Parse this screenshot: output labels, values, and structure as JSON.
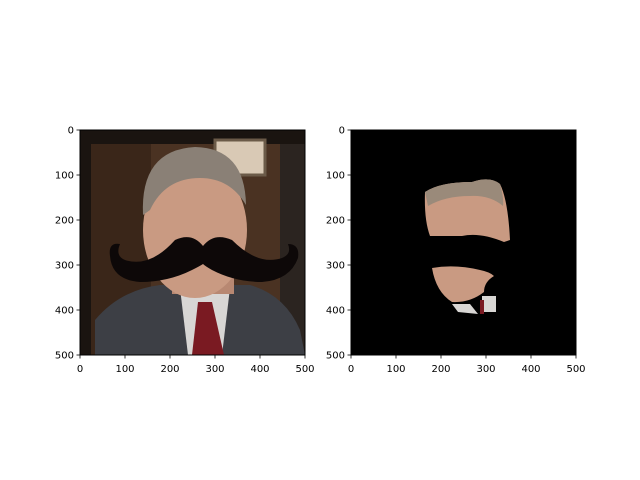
{
  "chart_data": [
    {
      "type": "image",
      "image_description": "portrait photo of a man in suit and red striped tie with a black curly mustache overlay",
      "x_ticks": [
        0,
        100,
        200,
        300,
        400,
        500
      ],
      "y_ticks": [
        0,
        100,
        200,
        300,
        400,
        500
      ],
      "xlim": [
        0,
        500
      ],
      "ylim": [
        500,
        0
      ],
      "colors": {
        "background": "#2a1d15",
        "wall": "#4a3222",
        "suit": "#3d3f45",
        "shirt": "#d8d6d4",
        "tie": "#7a1a22",
        "skin": "#c99a82",
        "hair": "#8a8076",
        "mustache": "#0d0808"
      }
    },
    {
      "type": "image",
      "image_description": "same face cutout on black background with mustache region removed",
      "x_ticks": [
        0,
        100,
        200,
        300,
        400,
        500
      ],
      "y_ticks": [
        0,
        100,
        200,
        300,
        400,
        500
      ],
      "xlim": [
        0,
        500
      ],
      "ylim": [
        500,
        0
      ],
      "colors": {
        "background": "#000000",
        "skin": "#c99a82",
        "hair": "#9a8a7a"
      }
    }
  ]
}
